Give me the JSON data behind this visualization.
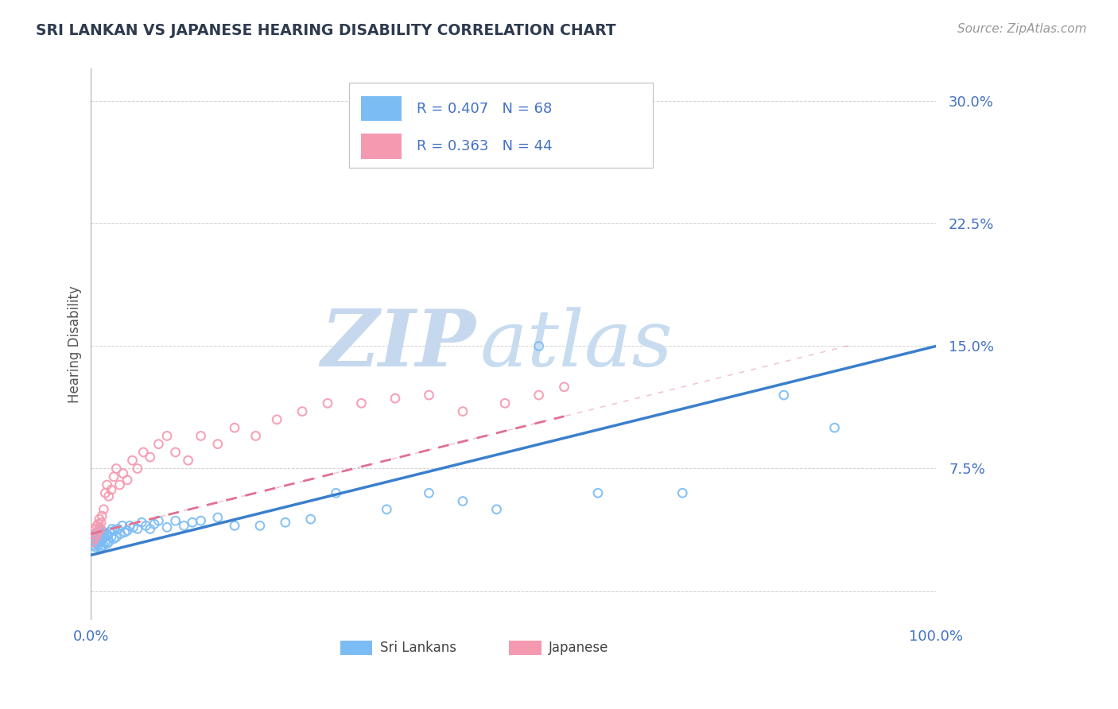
{
  "title": "SRI LANKAN VS JAPANESE HEARING DISABILITY CORRELATION CHART",
  "source": "Source: ZipAtlas.com",
  "ylabel": "Hearing Disability",
  "sri_lankan_R": 0.407,
  "sri_lankan_N": 68,
  "japanese_R": 0.363,
  "japanese_N": 44,
  "sri_lankan_color": "#7BBCF5",
  "japanese_color": "#F599B0",
  "trend_sri_lankan_color": "#3B7FCC",
  "trend_japanese_color": "#E07090",
  "watermark_zip_color": "#C5D8EE",
  "watermark_atlas_color": "#C8DCF0",
  "background_color": "#FFFFFF",
  "xmin": 0.0,
  "xmax": 1.0,
  "ymin": -0.018,
  "ymax": 0.32,
  "ytick_vals": [
    0.0,
    0.075,
    0.15,
    0.225,
    0.3
  ],
  "ytick_labels": [
    "",
    "7.5%",
    "15.0%",
    "22.5%",
    "30.0%"
  ],
  "xtick_vals": [
    0.0,
    1.0
  ],
  "xtick_labels": [
    "0.0%",
    "100.0%"
  ],
  "grid_color": "#CCCCCC",
  "tick_color": "#4472C4",
  "title_color": "#2E3A4E",
  "source_color": "#999999",
  "ylabel_color": "#555555",
  "sl_x": [
    0.002,
    0.003,
    0.004,
    0.005,
    0.005,
    0.006,
    0.006,
    0.007,
    0.007,
    0.008,
    0.008,
    0.009,
    0.009,
    0.01,
    0.01,
    0.011,
    0.011,
    0.012,
    0.012,
    0.013,
    0.013,
    0.015,
    0.015,
    0.016,
    0.017,
    0.018,
    0.019,
    0.02,
    0.021,
    0.022,
    0.024,
    0.025,
    0.027,
    0.028,
    0.03,
    0.032,
    0.035,
    0.037,
    0.04,
    0.043,
    0.046,
    0.05,
    0.055,
    0.06,
    0.065,
    0.07,
    0.075,
    0.08,
    0.09,
    0.1,
    0.11,
    0.12,
    0.13,
    0.15,
    0.17,
    0.2,
    0.23,
    0.26,
    0.29,
    0.35,
    0.4,
    0.44,
    0.48,
    0.53,
    0.6,
    0.7,
    0.82,
    0.88
  ],
  "sl_y": [
    0.03,
    0.025,
    0.028,
    0.032,
    0.027,
    0.035,
    0.029,
    0.033,
    0.031,
    0.036,
    0.03,
    0.034,
    0.028,
    0.038,
    0.032,
    0.036,
    0.03,
    0.033,
    0.027,
    0.037,
    0.031,
    0.035,
    0.028,
    0.033,
    0.03,
    0.035,
    0.029,
    0.034,
    0.03,
    0.036,
    0.033,
    0.038,
    0.032,
    0.037,
    0.033,
    0.038,
    0.035,
    0.04,
    0.036,
    0.037,
    0.04,
    0.039,
    0.038,
    0.042,
    0.04,
    0.038,
    0.041,
    0.043,
    0.039,
    0.043,
    0.04,
    0.042,
    0.043,
    0.045,
    0.04,
    0.04,
    0.042,
    0.044,
    0.06,
    0.05,
    0.06,
    0.055,
    0.05,
    0.15,
    0.06,
    0.06,
    0.12,
    0.1
  ],
  "jp_x": [
    0.002,
    0.003,
    0.004,
    0.005,
    0.006,
    0.007,
    0.008,
    0.009,
    0.01,
    0.011,
    0.012,
    0.013,
    0.015,
    0.017,
    0.019,
    0.021,
    0.024,
    0.027,
    0.03,
    0.034,
    0.038,
    0.043,
    0.049,
    0.055,
    0.062,
    0.07,
    0.08,
    0.09,
    0.1,
    0.115,
    0.13,
    0.15,
    0.17,
    0.195,
    0.22,
    0.25,
    0.28,
    0.32,
    0.36,
    0.4,
    0.44,
    0.49,
    0.53,
    0.56
  ],
  "jp_y": [
    0.03,
    0.032,
    0.035,
    0.038,
    0.033,
    0.04,
    0.036,
    0.041,
    0.044,
    0.038,
    0.042,
    0.046,
    0.05,
    0.06,
    0.065,
    0.058,
    0.062,
    0.07,
    0.075,
    0.065,
    0.072,
    0.068,
    0.08,
    0.075,
    0.085,
    0.082,
    0.09,
    0.095,
    0.085,
    0.08,
    0.095,
    0.09,
    0.1,
    0.095,
    0.105,
    0.11,
    0.115,
    0.115,
    0.118,
    0.12,
    0.11,
    0.115,
    0.12,
    0.125
  ]
}
